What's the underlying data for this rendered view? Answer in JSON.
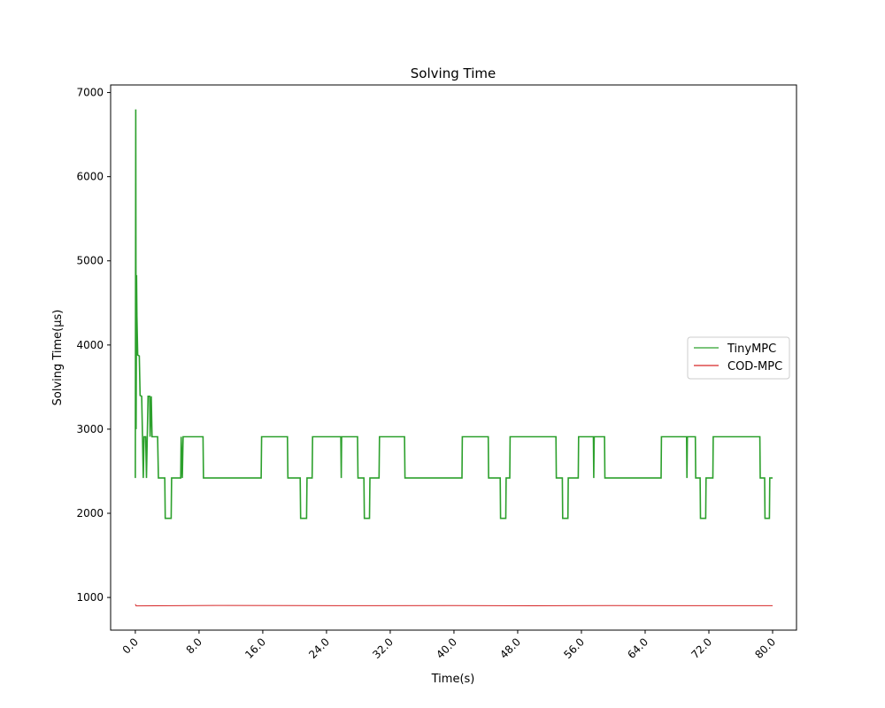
{
  "chart_data": {
    "type": "line",
    "title": "Solving Time",
    "xlabel": "Time(s)",
    "ylabel": "Solving Time(μs)",
    "xlim": [
      -3.1,
      83.0
    ],
    "ylim": [
      612,
      7090
    ],
    "x_ticks": [
      0,
      8,
      16,
      24,
      32,
      40,
      48,
      56,
      64,
      72,
      80
    ],
    "x_tick_labels": [
      "0.0",
      "8.0",
      "16.0",
      "24.0",
      "32.0",
      "40.0",
      "48.0",
      "56.0",
      "64.0",
      "72.0",
      "80.0"
    ],
    "y_ticks": [
      1000,
      2000,
      3000,
      4000,
      5000,
      6000,
      7000
    ],
    "y_tick_labels": [
      "1000",
      "2000",
      "3000",
      "4000",
      "5000",
      "6000",
      "7000"
    ],
    "grid": false,
    "legend_position": "center-right",
    "series": [
      {
        "name": "TinyMPC",
        "color": "#2ca02c",
        "points": [
          [
            0.0,
            2420
          ],
          [
            0.05,
            6800
          ],
          [
            0.1,
            3000
          ],
          [
            0.15,
            4830
          ],
          [
            0.2,
            4350
          ],
          [
            0.3,
            3880
          ],
          [
            0.5,
            3870
          ],
          [
            0.6,
            3400
          ],
          [
            0.8,
            3390
          ],
          [
            0.9,
            2910
          ],
          [
            1.0,
            2420
          ],
          [
            1.1,
            2910
          ],
          [
            1.3,
            2910
          ],
          [
            1.4,
            2420
          ],
          [
            1.5,
            2910
          ],
          [
            1.6,
            3390
          ],
          [
            1.8,
            3390
          ],
          [
            1.85,
            2910
          ],
          [
            2.0,
            3390
          ],
          [
            2.1,
            2910
          ],
          [
            2.8,
            2910
          ],
          [
            2.9,
            2420
          ],
          [
            3.7,
            2420
          ],
          [
            3.75,
            1940
          ],
          [
            4.5,
            1940
          ],
          [
            4.55,
            2420
          ],
          [
            5.7,
            2420
          ],
          [
            5.75,
            2910
          ],
          [
            5.9,
            2420
          ],
          [
            6.0,
            2910
          ],
          [
            8.5,
            2910
          ],
          [
            8.55,
            2420
          ],
          [
            15.8,
            2420
          ],
          [
            15.85,
            2910
          ],
          [
            19.1,
            2910
          ],
          [
            19.15,
            2420
          ],
          [
            20.7,
            2420
          ],
          [
            20.75,
            1940
          ],
          [
            21.5,
            1940
          ],
          [
            21.55,
            2420
          ],
          [
            22.2,
            2420
          ],
          [
            22.25,
            2910
          ],
          [
            25.8,
            2910
          ],
          [
            25.85,
            2420
          ],
          [
            25.9,
            2910
          ],
          [
            27.9,
            2910
          ],
          [
            27.95,
            2420
          ],
          [
            28.7,
            2420
          ],
          [
            28.75,
            1940
          ],
          [
            29.4,
            1940
          ],
          [
            29.45,
            2420
          ],
          [
            30.6,
            2420
          ],
          [
            30.65,
            2910
          ],
          [
            33.8,
            2910
          ],
          [
            33.85,
            2420
          ],
          [
            41.0,
            2420
          ],
          [
            41.05,
            2910
          ],
          [
            44.3,
            2910
          ],
          [
            44.35,
            2420
          ],
          [
            45.8,
            2420
          ],
          [
            45.85,
            1940
          ],
          [
            46.5,
            1940
          ],
          [
            46.55,
            2420
          ],
          [
            47.0,
            2420
          ],
          [
            47.05,
            2910
          ],
          [
            52.8,
            2910
          ],
          [
            52.85,
            2420
          ],
          [
            53.6,
            2420
          ],
          [
            53.65,
            1940
          ],
          [
            54.3,
            1940
          ],
          [
            54.35,
            2420
          ],
          [
            55.6,
            2420
          ],
          [
            55.65,
            2910
          ],
          [
            57.5,
            2910
          ],
          [
            57.55,
            2420
          ],
          [
            57.6,
            2910
          ],
          [
            58.9,
            2910
          ],
          [
            58.95,
            2420
          ],
          [
            66.0,
            2420
          ],
          [
            66.05,
            2910
          ],
          [
            69.2,
            2910
          ],
          [
            69.25,
            2420
          ],
          [
            69.3,
            2910
          ],
          [
            70.3,
            2910
          ],
          [
            70.35,
            2420
          ],
          [
            70.9,
            2420
          ],
          [
            70.95,
            1940
          ],
          [
            71.6,
            1940
          ],
          [
            71.65,
            2420
          ],
          [
            72.5,
            2420
          ],
          [
            72.55,
            2910
          ],
          [
            78.4,
            2910
          ],
          [
            78.45,
            2420
          ],
          [
            79.0,
            2420
          ],
          [
            79.05,
            1940
          ],
          [
            79.6,
            1940
          ],
          [
            79.65,
            2420
          ],
          [
            80.0,
            2420
          ]
        ]
      },
      {
        "name": "COD-MPC",
        "color": "#d62728",
        "points": [
          [
            0.0,
            920
          ],
          [
            0.1,
            900
          ],
          [
            10,
            905
          ],
          [
            20,
            903
          ],
          [
            30,
            902
          ],
          [
            40,
            904
          ],
          [
            50,
            901
          ],
          [
            60,
            903
          ],
          [
            70,
            902
          ],
          [
            80,
            902
          ]
        ]
      }
    ]
  }
}
